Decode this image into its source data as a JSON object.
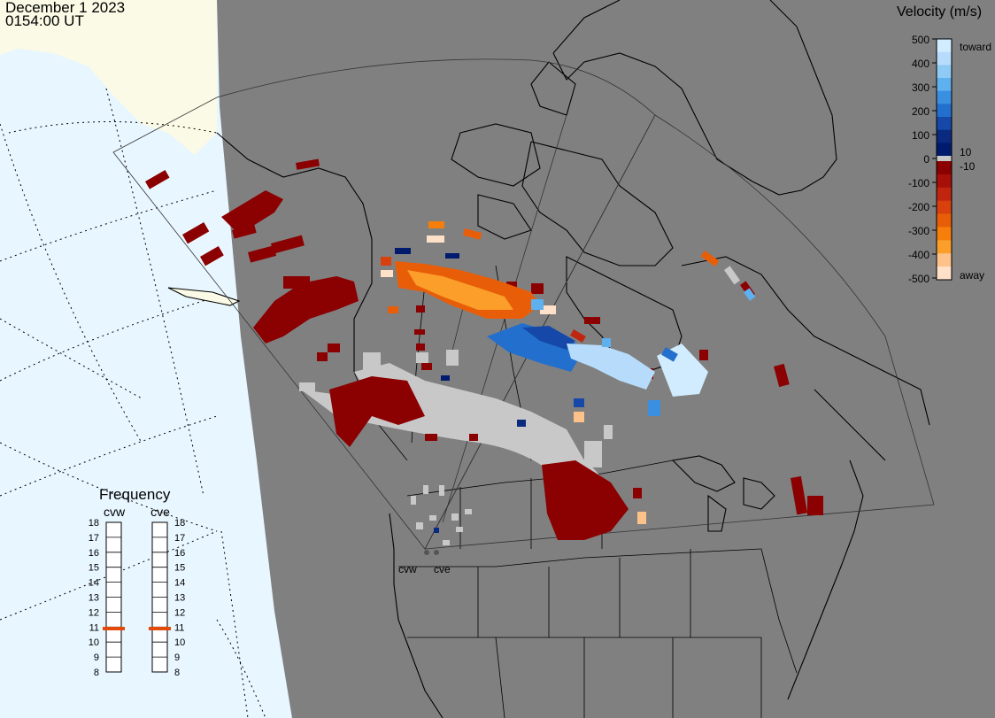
{
  "header": {
    "date": "December 1 2023",
    "time": "0154:00 UT"
  },
  "velocity_legend": {
    "title": "Velocity (m/s)",
    "toward_label": "toward",
    "away_label": "away",
    "ticks": [
      "500",
      "400",
      "300",
      "200",
      "100",
      "10",
      "0",
      "-10",
      "-100",
      "-200",
      "-300",
      "-400",
      "-500"
    ],
    "colors": [
      "#d2ecff",
      "#b7dcfb",
      "#8fcaf5",
      "#5fb0ee",
      "#3b8fe0",
      "#236fcd",
      "#1548a8",
      "#0a2a80",
      "#001a6e",
      "#c8c8c8",
      "#8b0000",
      "#a61008",
      "#c02510",
      "#d8400d",
      "#e85e08",
      "#f57f0a",
      "#fb9e2a",
      "#fdc28a",
      "#ffe0c8"
    ]
  },
  "frequency_panel": {
    "title": "Frequency",
    "radars": [
      "cvw",
      "cve"
    ],
    "scale": [
      "18",
      "17",
      "16",
      "15",
      "14",
      "13",
      "12",
      "11",
      "10",
      "9",
      "8"
    ],
    "values_mhz": [
      10.9,
      10.9
    ],
    "marker_color": "#e24a0a"
  },
  "map": {
    "station_labels": [
      "cvw",
      "cve"
    ],
    "land_fill": "#808080",
    "ocean_fill": "#e8f6ff",
    "ice_fill": "#fafae6",
    "no_data_fill": "#c8c8c8"
  }
}
